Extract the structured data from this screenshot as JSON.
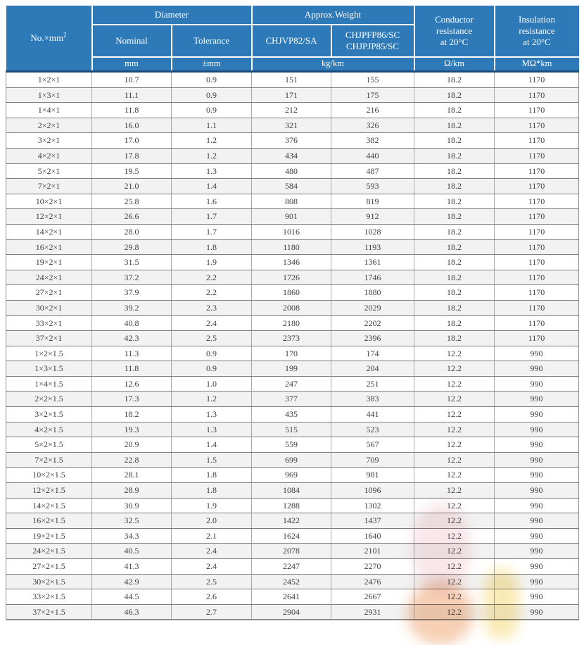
{
  "colors": {
    "header_blue": "#2e79b8",
    "header_divider_white": "#ffffff",
    "header_bottom_line": "#1b4e7d",
    "row_stripe": "#f2f2f2",
    "grid_border": "#8f8f8f",
    "body_text": "#404040"
  },
  "table": {
    "header": {
      "no_label": "No.×mm",
      "no_sup": "2",
      "diameter": "Diameter",
      "nominal": "Nominal",
      "tolerance": "Tolerance",
      "approx_weight": "Approx.Weight",
      "weight_model_1": "CHJVP82/SA",
      "weight_model_2_line1": "CHJPFP86/SC",
      "weight_model_2_line2": "CHJPJP85/SC",
      "conductor": {
        "line1": "Conductor",
        "line2": "resistance",
        "line3": "at 20°C"
      },
      "insulation": {
        "line1": "Insulation",
        "line2": "resistance",
        "line3": "at 20°C"
      },
      "units": {
        "nominal": "mm",
        "tolerance": "±mm",
        "weight": "kg/km",
        "conductor": "Ω/km",
        "insulation": "MΩ*km"
      }
    },
    "rows": [
      [
        "1×2×1",
        "10.7",
        "0.9",
        "151",
        "155",
        "18.2",
        "1170"
      ],
      [
        "1×3×1",
        "11.1",
        "0.9",
        "171",
        "175",
        "18.2",
        "1170"
      ],
      [
        "1×4×1",
        "11.8",
        "0.9",
        "212",
        "216",
        "18.2",
        "1170"
      ],
      [
        "2×2×1",
        "16.0",
        "1.1",
        "321",
        "326",
        "18.2",
        "1170"
      ],
      [
        "3×2×1",
        "17.0",
        "1.2",
        "376",
        "382",
        "18.2",
        "1170"
      ],
      [
        "4×2×1",
        "17.8",
        "1.2",
        "434",
        "440",
        "18.2",
        "1170"
      ],
      [
        "5×2×1",
        "19.5",
        "1.3",
        "480",
        "487",
        "18.2",
        "1170"
      ],
      [
        "7×2×1",
        "21.0",
        "1.4",
        "584",
        "593",
        "18.2",
        "1170"
      ],
      [
        "10×2×1",
        "25.8",
        "1.6",
        "808",
        "819",
        "18.2",
        "1170"
      ],
      [
        "12×2×1",
        "26.6",
        "1.7",
        "901",
        "912",
        "18.2",
        "1170"
      ],
      [
        "14×2×1",
        "28.0",
        "1.7",
        "1016",
        "1028",
        "18.2",
        "1170"
      ],
      [
        "16×2×1",
        "29.8",
        "1.8",
        "1180",
        "1193",
        "18.2",
        "1170"
      ],
      [
        "19×2×1",
        "31.5",
        "1.9",
        "1346",
        "1361",
        "18.2",
        "1170"
      ],
      [
        "24×2×1",
        "37.2",
        "2.2",
        "1726",
        "1746",
        "18.2",
        "1170"
      ],
      [
        "27×2×1",
        "37.9",
        "2.2",
        "1860",
        "1880",
        "18.2",
        "1170"
      ],
      [
        "30×2×1",
        "39.2",
        "2.3",
        "2008",
        "2029",
        "18.2",
        "1170"
      ],
      [
        "33×2×1",
        "40.8",
        "2.4",
        "2180",
        "2202",
        "18.2",
        "1170"
      ],
      [
        "37×2×1",
        "42.3",
        "2.5",
        "2373",
        "2396",
        "18.2",
        "1170"
      ],
      [
        "1×2×1.5",
        "11.3",
        "0.9",
        "170",
        "174",
        "12.2",
        "990"
      ],
      [
        "1×3×1.5",
        "11.8",
        "0.9",
        "199",
        "204",
        "12.2",
        "990"
      ],
      [
        "1×4×1.5",
        "12.6",
        "1.0",
        "247",
        "251",
        "12.2",
        "990"
      ],
      [
        "2×2×1.5",
        "17.3",
        "1.2",
        "377",
        "383",
        "12.2",
        "990"
      ],
      [
        "3×2×1.5",
        "18.2",
        "1.3",
        "435",
        "441",
        "12.2",
        "990"
      ],
      [
        "4×2×1.5",
        "19.3",
        "1.3",
        "515",
        "523",
        "12.2",
        "990"
      ],
      [
        "5×2×1.5",
        "20.9",
        "1.4",
        "559",
        "567",
        "12.2",
        "990"
      ],
      [
        "7×2×1.5",
        "22.8",
        "1.5",
        "699",
        "709",
        "12.2",
        "990"
      ],
      [
        "10×2×1.5",
        "28.1",
        "1.8",
        "969",
        "981",
        "12.2",
        "990"
      ],
      [
        "12×2×1.5",
        "28.9",
        "1.8",
        "1084",
        "1096",
        "12.2",
        "990"
      ],
      [
        "14×2×1.5",
        "30.9",
        "1.9",
        "1288",
        "1302",
        "12.2",
        "990"
      ],
      [
        "16×2×1.5",
        "32.5",
        "2.0",
        "1422",
        "1437",
        "12.2",
        "990"
      ],
      [
        "19×2×1.5",
        "34.3",
        "2.1",
        "1624",
        "1640",
        "12.2",
        "990"
      ],
      [
        "24×2×1.5",
        "40.5",
        "2.4",
        "2078",
        "2101",
        "12.2",
        "990"
      ],
      [
        "27×2×1.5",
        "41.3",
        "2.4",
        "2247",
        "2270",
        "12.2",
        "990"
      ],
      [
        "30×2×1.5",
        "42.9",
        "2.5",
        "2452",
        "2476",
        "12.2",
        "990"
      ],
      [
        "33×2×1.5",
        "44.5",
        "2.6",
        "2641",
        "2667",
        "12.2",
        "990"
      ],
      [
        "37×2×1.5",
        "46.3",
        "2.7",
        "2904",
        "2931",
        "12.2",
        "990"
      ]
    ]
  }
}
